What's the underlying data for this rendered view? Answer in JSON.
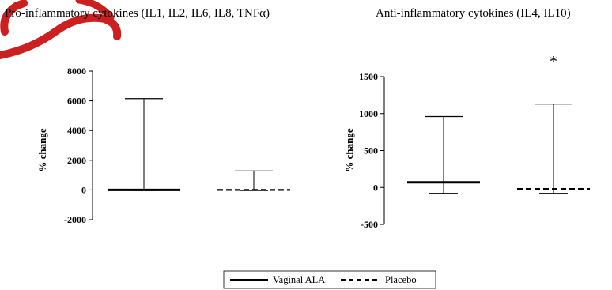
{
  "chart_data": [
    {
      "type": "box",
      "title": "Pro-inflammatory cytokines (IL1, IL2, IL6, IL8, TNFα)",
      "ylabel": "% change",
      "ylim": [
        -2000,
        8000
      ],
      "yticks": [
        -2000,
        0,
        2000,
        4000,
        6000,
        8000
      ],
      "yticklabels": [
        "-2000",
        "0",
        "2000",
        "4000",
        "6000",
        "8000"
      ],
      "series": [
        {
          "name": "Vaginal ALA",
          "style": "solid",
          "median": 0,
          "whisker_low": -30,
          "whisker_high": 6150
        },
        {
          "name": "Placebo",
          "style": "dashed",
          "median": 0,
          "whisker_low": -40,
          "whisker_high": 1280
        }
      ],
      "annotation": ""
    },
    {
      "type": "box",
      "title": "Anti-inflammatory cytokines (IL4, IL10)",
      "ylabel": "% change",
      "ylim": [
        -500,
        1500
      ],
      "yticks": [
        -500,
        0,
        500,
        1000,
        1500
      ],
      "yticklabels": [
        "-500",
        "0",
        "500",
        "1000",
        "1500"
      ],
      "series": [
        {
          "name": "Vaginal ALA",
          "style": "solid",
          "median": 70,
          "whisker_low": -80,
          "whisker_high": 960
        },
        {
          "name": "Placebo",
          "style": "dashed",
          "median": -20,
          "whisker_low": -80,
          "whisker_high": 1130
        }
      ],
      "annotation": "*"
    }
  ],
  "legend": {
    "items": [
      {
        "label": "Vaginal ALA",
        "style": "solid"
      },
      {
        "label": "Placebo",
        "style": "dashed"
      }
    ],
    "placement": "bottom-center"
  },
  "colors": {
    "ink": "#000000",
    "watermark": "#cc1f1f"
  }
}
